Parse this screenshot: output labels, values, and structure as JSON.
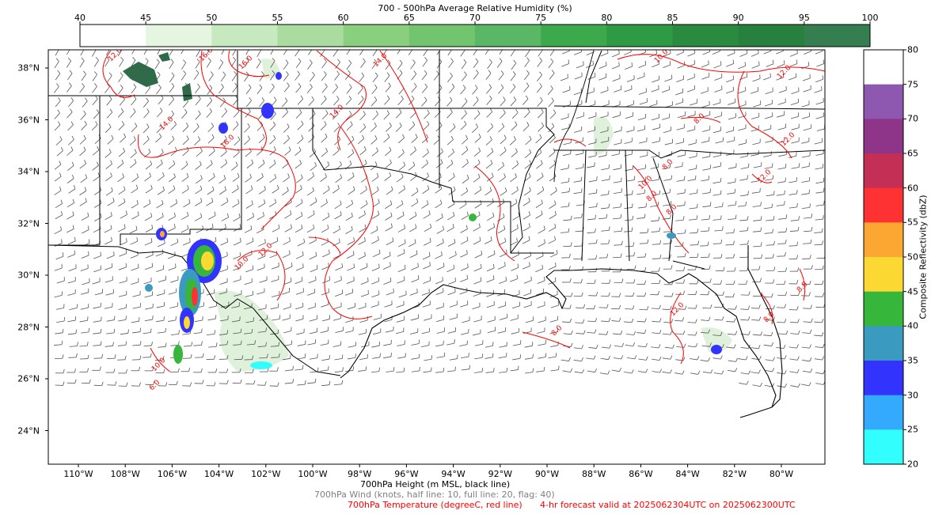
{
  "rh_title": "700 - 500hPa Average Relative Humidity (%)",
  "rh_ticks": [
    "40",
    "45",
    "50",
    "55",
    "60",
    "65",
    "70",
    "75",
    "80",
    "85",
    "90",
    "95",
    "100"
  ],
  "rh_colors": [
    "#ffffff",
    "#e5f5e0",
    "#c7e9c0",
    "#a9dc9e",
    "#8acf7e",
    "#72c46f",
    "#5ab765",
    "#3ca94d",
    "#2f9a44",
    "#2a8a40",
    "#28803f",
    "#347e4f",
    "#2f6b49"
  ],
  "lat_labels": [
    "38°N",
    "36°N",
    "34°N",
    "32°N",
    "30°N",
    "28°N",
    "26°N",
    "24°N"
  ],
  "lon_labels": [
    "110°W",
    "108°W",
    "106°W",
    "104°W",
    "102°W",
    "100°W",
    "98°W",
    "96°W",
    "94°W",
    "92°W",
    "90°W",
    "88°W",
    "86°W",
    "84°W",
    "82°W",
    "80°W"
  ],
  "refl_title": "Composite Reflectivity (dbZ)",
  "refl_ticks": [
    "80",
    "75",
    "70",
    "65",
    "60",
    "55",
    "50",
    "45",
    "40",
    "35",
    "30",
    "25",
    "20"
  ],
  "refl_colors": [
    "#ffffff",
    "#8f58b0",
    "#8e3489",
    "#c43055",
    "#fe3232",
    "#fda733",
    "#fcd932",
    "#36b73c",
    "#3a9abf",
    "#3333fe",
    "#33aafe",
    "#33fefe"
  ],
  "footer": {
    "line1": "700hPa Height (m MSL, black line)",
    "line2": "700hPa Wind (knots, half line: 10, full line: 20, flag: 40)",
    "line3a": "700hPa Temperature (degreeC, red line)",
    "line3b": "4-hr forecast valid at 2025062304UTC on 2025062300UTC"
  },
  "contour_labels": [
    "12.0",
    "16.0",
    "16.0",
    "14.0",
    "10.0",
    "12.0",
    "8.0",
    "12.0",
    "14.0",
    "16.0",
    "14.0",
    "10.0",
    "12.0",
    "10.0",
    "8.0",
    "8.0",
    "8.0",
    "12.0",
    "8.0",
    "8.0",
    "8.0",
    "10.0",
    "6.0",
    "12.0"
  ],
  "colors": {
    "temperature": "#ff0000",
    "height": "#000000",
    "wind": "#555555",
    "footer_gray": "#7f7f7f"
  }
}
